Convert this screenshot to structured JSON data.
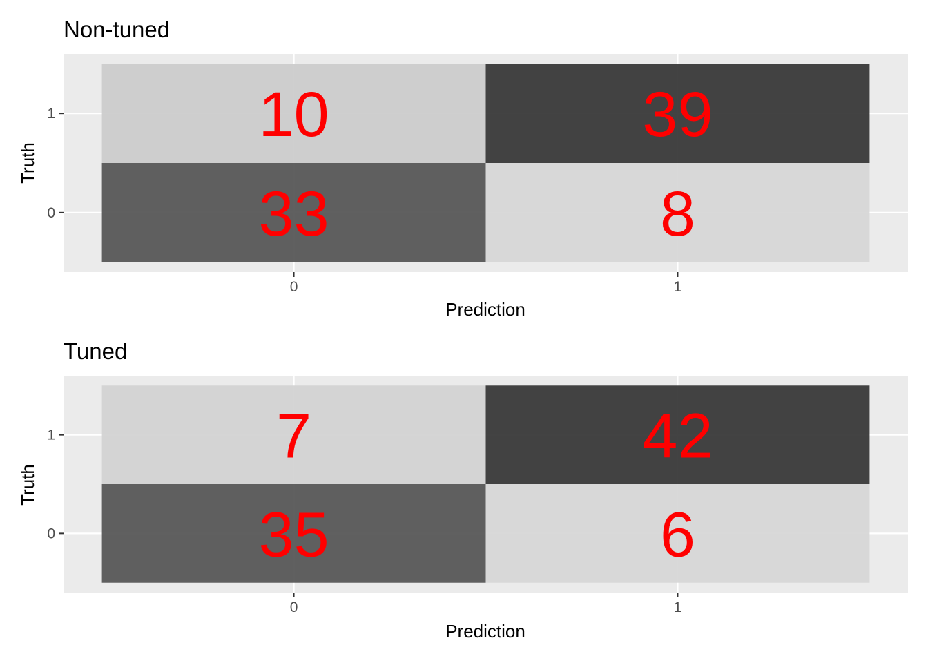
{
  "chart_data": [
    {
      "type": "heatmap",
      "title": "Non-tuned",
      "xlabel": "Prediction",
      "ylabel": "Truth",
      "x_categories": [
        "0",
        "1"
      ],
      "y_categories": [
        "0",
        "1"
      ],
      "cells": [
        {
          "prediction": "0",
          "truth": "1",
          "value": 10
        },
        {
          "prediction": "1",
          "truth": "1",
          "value": 39
        },
        {
          "prediction": "0",
          "truth": "0",
          "value": 33
        },
        {
          "prediction": "1",
          "truth": "0",
          "value": 8
        }
      ],
      "grid": true,
      "legend": "none",
      "fill_low": "#d6d6d6",
      "fill_high": "#333333",
      "label_color": "#ff0000",
      "panel_background": "#ebebeb"
    },
    {
      "type": "heatmap",
      "title": "Tuned",
      "xlabel": "Prediction",
      "ylabel": "Truth",
      "x_categories": [
        "0",
        "1"
      ],
      "y_categories": [
        "0",
        "1"
      ],
      "cells": [
        {
          "prediction": "0",
          "truth": "1",
          "value": 7
        },
        {
          "prediction": "1",
          "truth": "1",
          "value": 42
        },
        {
          "prediction": "0",
          "truth": "0",
          "value": 35
        },
        {
          "prediction": "1",
          "truth": "0",
          "value": 6
        }
      ],
      "grid": true,
      "legend": "none",
      "fill_low": "#d6d6d6",
      "fill_high": "#333333",
      "label_color": "#ff0000",
      "panel_background": "#ebebeb"
    }
  ]
}
